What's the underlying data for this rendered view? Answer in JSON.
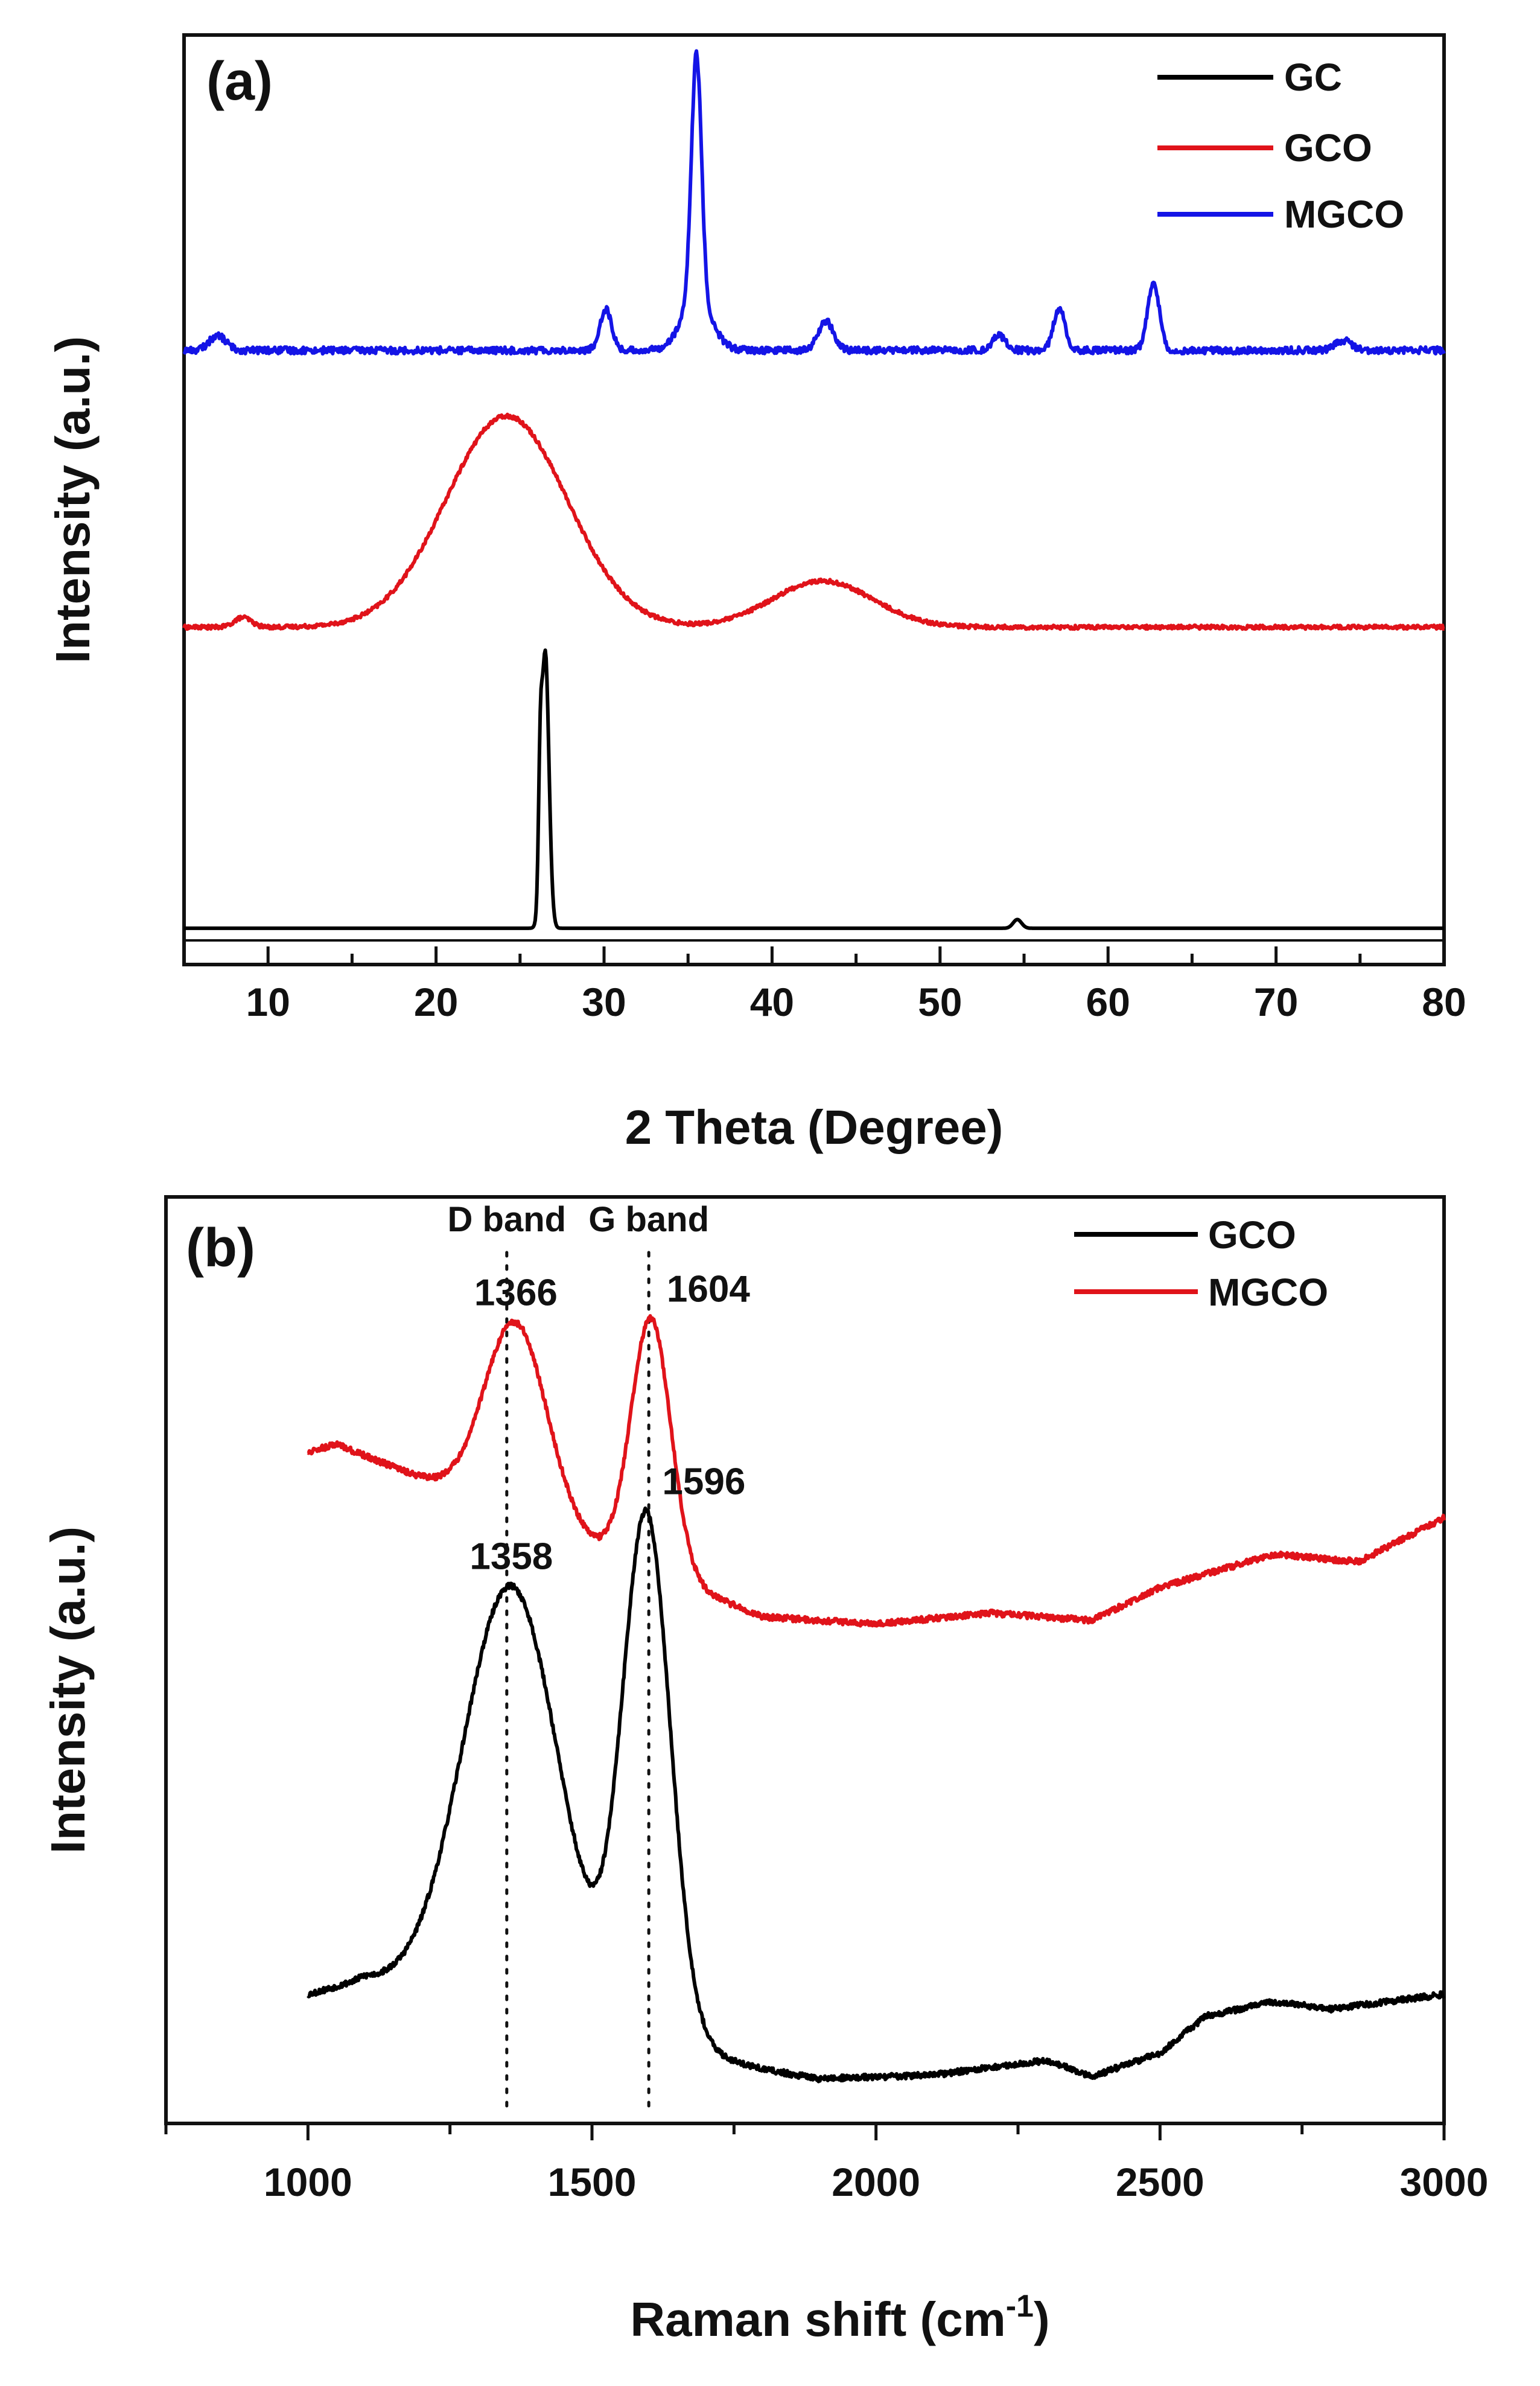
{
  "chart_data": [
    {
      "type": "line",
      "panel_label": "(a)",
      "xlabel": "2 Theta (Degree)",
      "ylabel": "Intensity (a.u.)",
      "xlim": [
        5,
        80
      ],
      "ylim": [
        0,
        1
      ],
      "y_ticks_shown": false,
      "x_ticks": [
        "10",
        "20",
        "30",
        "40",
        "50",
        "60",
        "70",
        "80"
      ],
      "legend": {
        "placement": "top-right",
        "entries": [
          "GC",
          "GCO",
          "MGCO"
        ]
      },
      "series": [
        {
          "name": "GC",
          "color": "#000000",
          "baseline": 0.025,
          "noise": 0.0,
          "peaks": [
            {
              "center": 26.5,
              "height": 0.57,
              "width": 0.22
            },
            {
              "center": 26.2,
              "height": 0.22,
              "width": 0.1
            },
            {
              "center": 54.6,
              "height": 0.018,
              "width": 0.25
            }
          ]
        },
        {
          "name": "GCO",
          "color": "#e0131a",
          "baseline": 0.645,
          "noise": 0.004,
          "peaks": [
            {
              "center": 24.2,
              "height": 0.435,
              "width": 3.6
            },
            {
              "center": 43.0,
              "height": 0.095,
              "width": 3.0
            },
            {
              "center": 8.5,
              "height": 0.02,
              "width": 0.5
            }
          ]
        },
        {
          "name": "MGCO",
          "color": "#1414e6",
          "baseline": 1.215,
          "noise": 0.007,
          "peaks": [
            {
              "center": 7.0,
              "height": 0.03,
              "width": 0.5
            },
            {
              "center": 30.1,
              "height": 0.085,
              "width": 0.35
            },
            {
              "center": 35.5,
              "height": 0.51,
              "width": 0.3
            },
            {
              "center": 35.5,
              "height": 0.1,
              "width": 0.9
            },
            {
              "center": 43.2,
              "height": 0.06,
              "width": 0.45
            },
            {
              "center": 53.5,
              "height": 0.03,
              "width": 0.4
            },
            {
              "center": 57.1,
              "height": 0.085,
              "width": 0.35
            },
            {
              "center": 62.7,
              "height": 0.14,
              "width": 0.35
            },
            {
              "center": 74.0,
              "height": 0.02,
              "width": 0.5
            }
          ]
        }
      ]
    },
    {
      "type": "line",
      "panel_label": "(b)",
      "xlabel": "Raman shift (cm",
      "xlabel_superscript": "-1",
      "xlabel_suffix": ")",
      "ylabel": "Intensity (a.u.)",
      "xlim": [
        750,
        3000
      ],
      "ylim": [
        0,
        1
      ],
      "y_ticks_shown": false,
      "x_ticks": [
        "1000",
        "1500",
        "2000",
        "2500",
        "3000"
      ],
      "legend": {
        "placement": "top-right",
        "entries": [
          "GCO",
          "MGCO"
        ]
      },
      "band_labels": [
        {
          "text": "D band",
          "x": 1350
        },
        {
          "text": "G band",
          "x": 1600
        }
      ],
      "peak_annotations": [
        {
          "text": "1366",
          "x": 1366,
          "series": "MGCO"
        },
        {
          "text": "1604",
          "x": 1604,
          "series": "MGCO"
        },
        {
          "text": "1358",
          "x": 1358,
          "series": "GCO"
        },
        {
          "text": "1596",
          "x": 1596,
          "series": "GCO"
        }
      ],
      "series": [
        {
          "name": "GCO",
          "color": "#000000",
          "x_start": 1000,
          "noise": 0.004,
          "baseline_points": [
            [
              1000,
              0.12
            ],
            [
              1100,
              0.14
            ],
            [
              1700,
              0.04
            ],
            [
              1800,
              0.018
            ],
            [
              1900,
              0.005
            ],
            [
              2100,
              0.01
            ],
            [
              2300,
              0.03
            ],
            [
              2380,
              0.008
            ],
            [
              2500,
              0.04
            ],
            [
              2580,
              0.09
            ],
            [
              2700,
              0.11
            ],
            [
              2800,
              0.1
            ],
            [
              3000,
              0.12
            ]
          ],
          "peaks": [
            {
              "center": 1358,
              "height": 0.58,
              "width": 85
            },
            {
              "center": 1596,
              "height": 0.71,
              "width": 42
            }
          ]
        },
        {
          "name": "MGCO",
          "color": "#e0131a",
          "x_start": 1000,
          "noise": 0.004,
          "baseline_points": [
            [
              1000,
              0.86
            ],
            [
              1050,
              0.87
            ],
            [
              1180,
              0.83
            ],
            [
              1800,
              0.635
            ],
            [
              2000,
              0.625
            ],
            [
              2200,
              0.64
            ],
            [
              2380,
              0.63
            ],
            [
              2500,
              0.675
            ],
            [
              2700,
              0.72
            ],
            [
              2850,
              0.71
            ],
            [
              3000,
              0.77
            ]
          ],
          "peaks": [
            {
              "center": 1366,
              "height": 0.265,
              "width": 55
            },
            {
              "center": 1604,
              "height": 0.345,
              "width": 35
            }
          ]
        }
      ]
    }
  ]
}
